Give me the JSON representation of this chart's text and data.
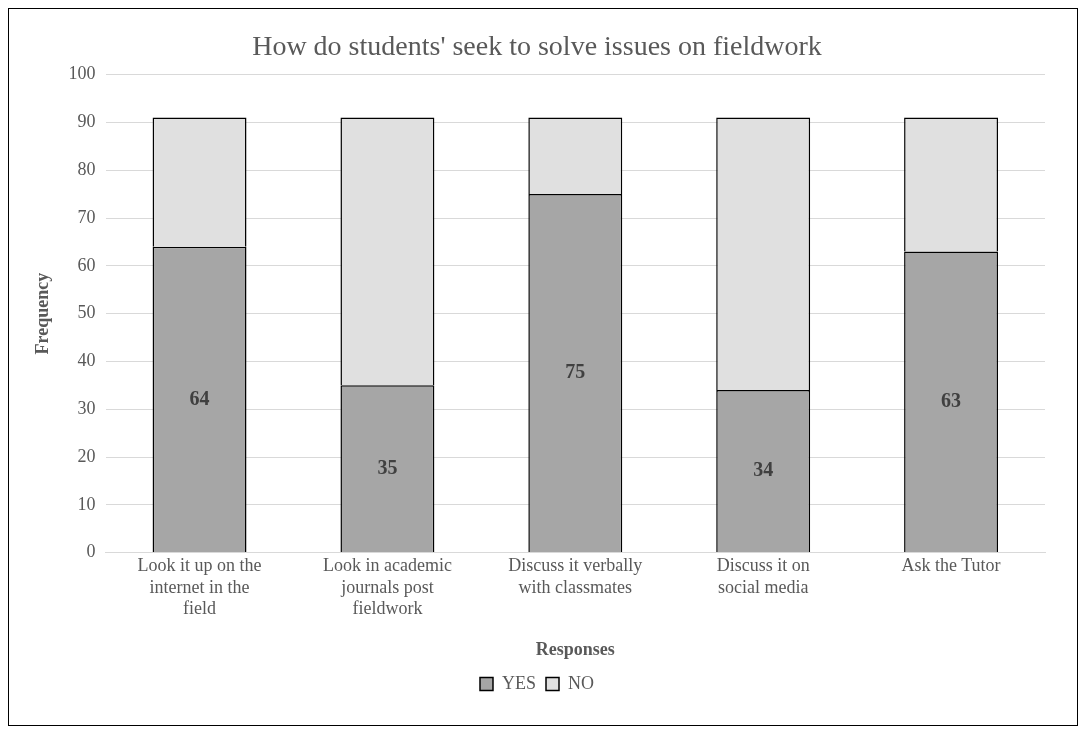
{
  "chart_data": {
    "type": "bar",
    "stacked": true,
    "title": "How do students' seek to solve issues on fieldwork",
    "xlabel": "Responses",
    "ylabel": "Frequency",
    "categories": [
      "Look it up on the internet in the field",
      "Look in academic journals post fieldwork",
      "Discuss it verbally with classmates",
      "Discuss it on social media",
      "Ask the Tutor"
    ],
    "series": [
      {
        "name": "YES",
        "color": "#a6a6a6",
        "values": [
          64,
          35,
          75,
          34,
          63
        ],
        "value_labels": [
          "64",
          "35",
          "75",
          "34",
          "63"
        ]
      },
      {
        "name": "NO",
        "color": "#e0e0e0",
        "values": [
          27,
          56,
          16,
          57,
          28
        ]
      }
    ],
    "ylim": [
      0,
      100
    ],
    "yticks": [
      0,
      10,
      20,
      30,
      40,
      50,
      60,
      70,
      80,
      90,
      100
    ],
    "grid": "y",
    "legend": "bottom"
  }
}
